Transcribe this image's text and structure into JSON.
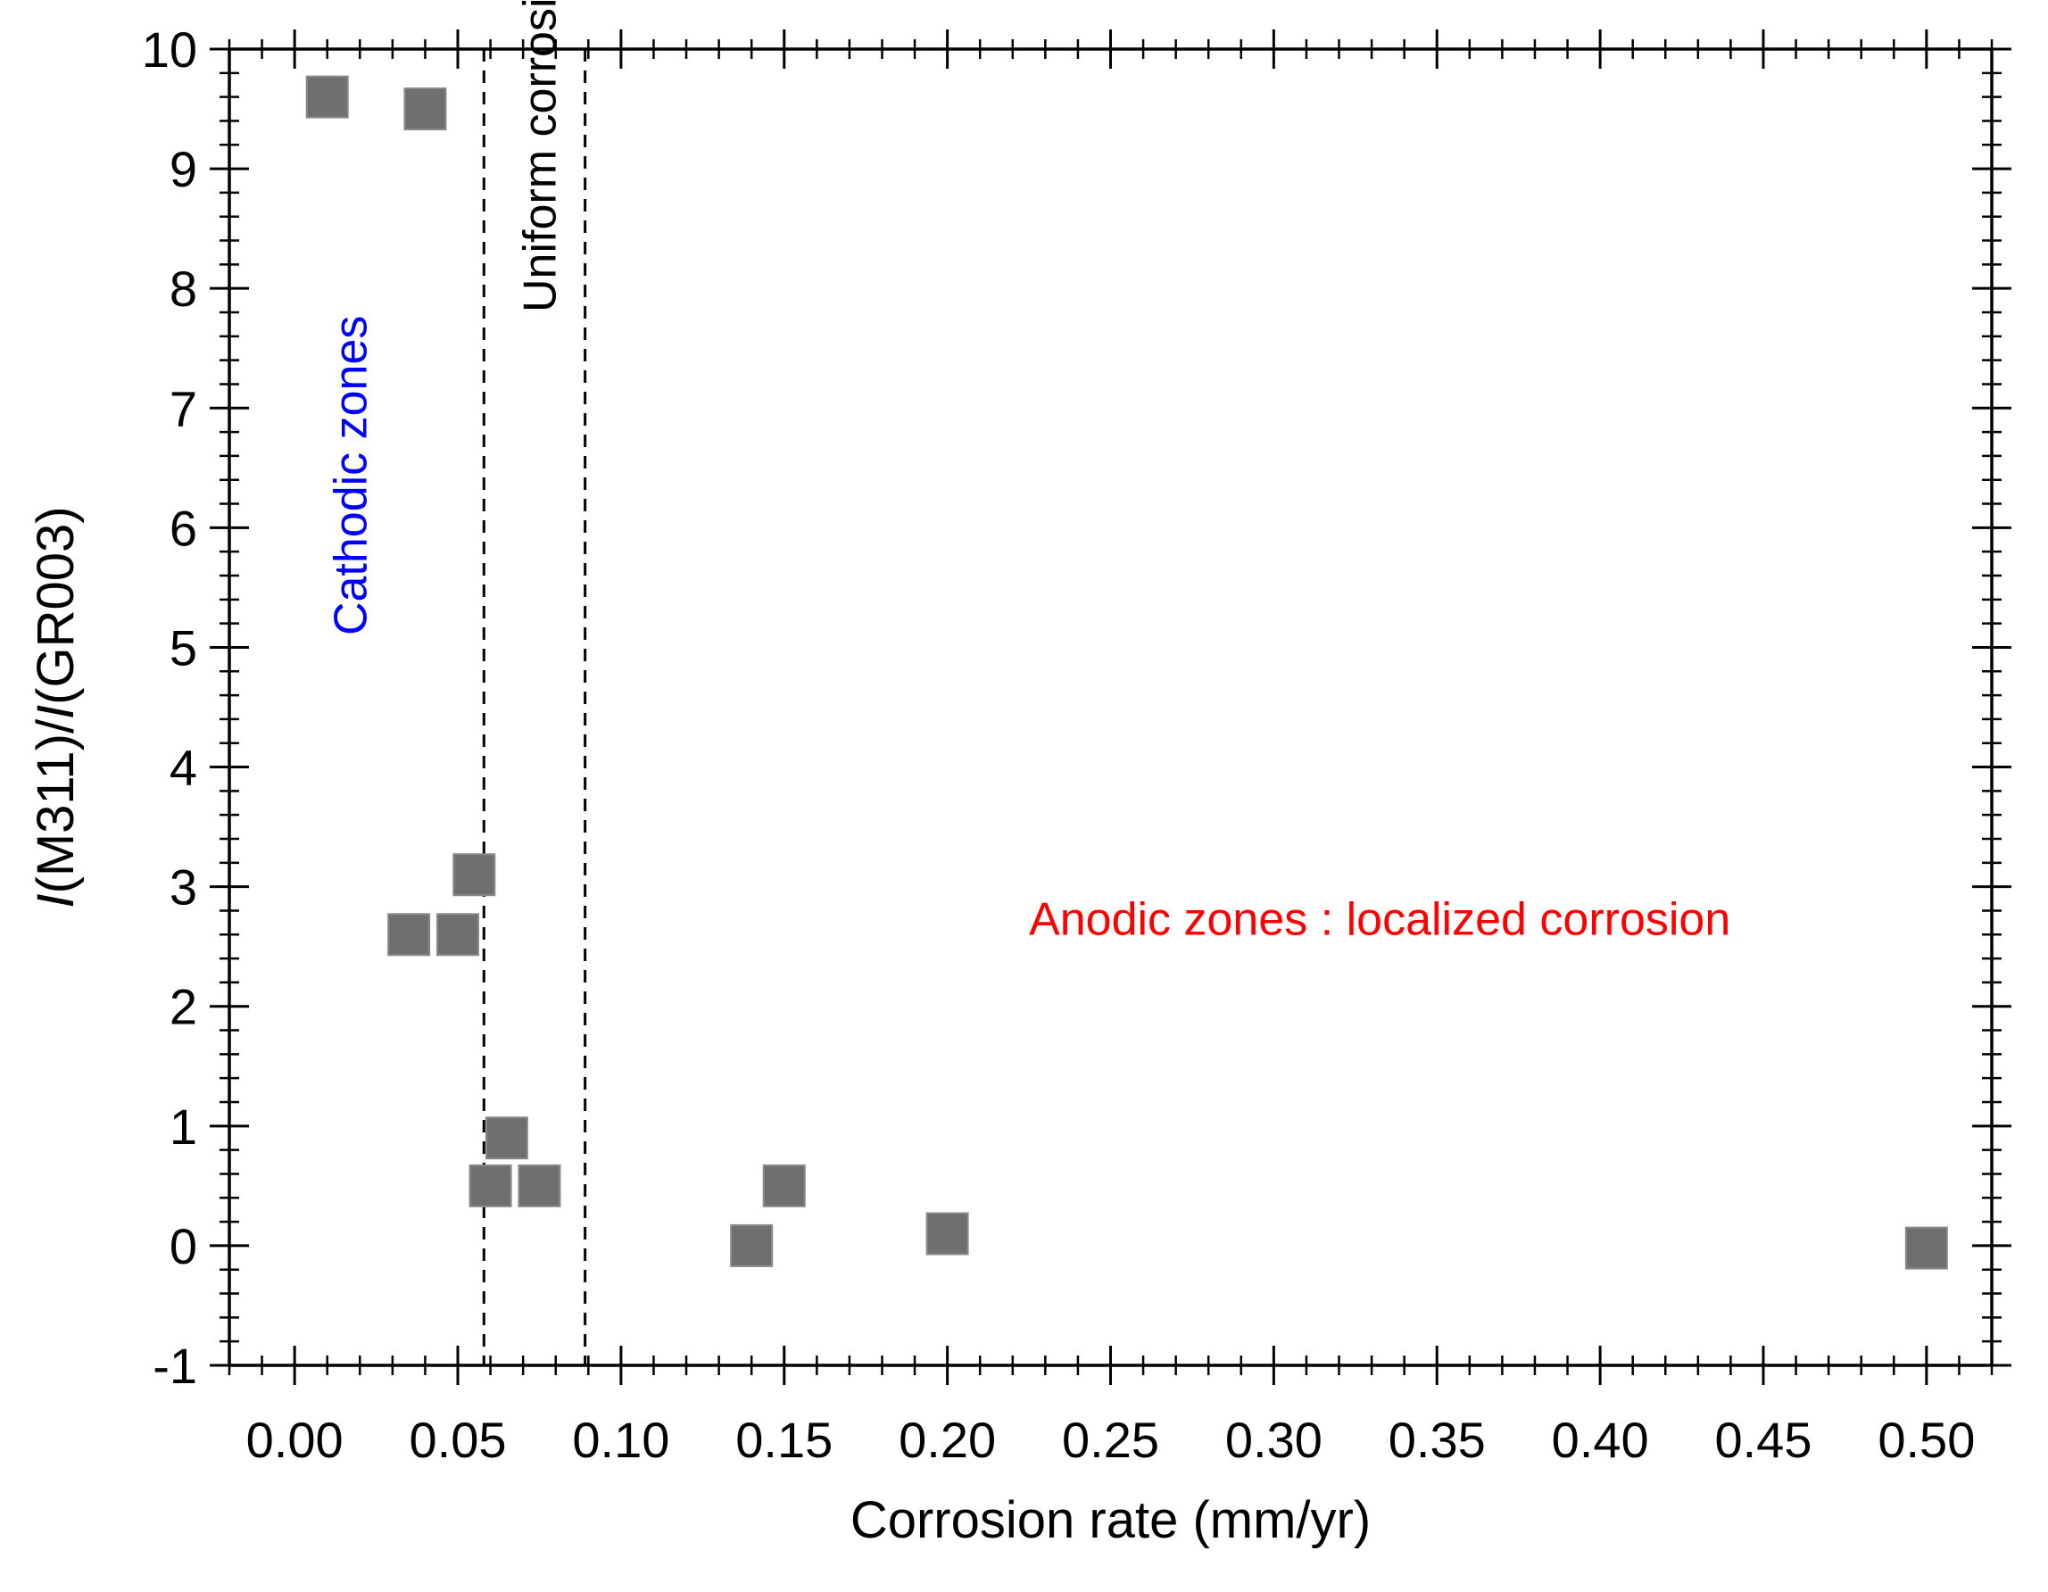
{
  "chart_data": {
    "type": "scatter",
    "xlabel": "Corrosion rate (mm/yr)",
    "ylabel_parts": [
      "I",
      "(M311)/",
      "I",
      "(GR003)"
    ],
    "xlim": [
      -0.02,
      0.52
    ],
    "ylim": [
      -1,
      10
    ],
    "x_ticks": [
      "0.00",
      "0.05",
      "0.10",
      "0.15",
      "0.20",
      "0.25",
      "0.30",
      "0.35",
      "0.40",
      "0.45",
      "0.50"
    ],
    "y_ticks": [
      "-1",
      "0",
      "1",
      "2",
      "3",
      "4",
      "5",
      "6",
      "7",
      "8",
      "9",
      "10"
    ],
    "x_tick_values": [
      0,
      0.05,
      0.1,
      0.15,
      0.2,
      0.25,
      0.3,
      0.35,
      0.4,
      0.45,
      0.5
    ],
    "y_tick_values": [
      -1,
      0,
      1,
      2,
      3,
      4,
      5,
      6,
      7,
      8,
      9,
      10
    ],
    "marker": "square",
    "marker_color": "#6f6f6f",
    "points": [
      {
        "x": 0.01,
        "y": 9.6
      },
      {
        "x": 0.04,
        "y": 9.5
      },
      {
        "x": 0.055,
        "y": 3.1
      },
      {
        "x": 0.035,
        "y": 2.6
      },
      {
        "x": 0.05,
        "y": 2.6
      },
      {
        "x": 0.065,
        "y": 0.9
      },
      {
        "x": 0.06,
        "y": 0.5
      },
      {
        "x": 0.075,
        "y": 0.5
      },
      {
        "x": 0.14,
        "y": 0.0
      },
      {
        "x": 0.15,
        "y": 0.5
      },
      {
        "x": 0.2,
        "y": 0.1
      },
      {
        "x": 0.5,
        "y": -0.02
      }
    ],
    "reference_lines": [
      {
        "x": 0.058,
        "style": "dashed"
      },
      {
        "x": 0.089,
        "style": "dashed"
      }
    ],
    "annotations": [
      {
        "text": "Cathodic zones",
        "x": 0.022,
        "y": 5.1,
        "color": "#0000ff",
        "rotate": true
      },
      {
        "text": "Uniform corrosion",
        "x": 0.08,
        "y": 7.8,
        "color": "#000000",
        "rotate": true
      },
      {
        "text": "Anodic zones : localized corrosion",
        "x": 0.225,
        "y": 2.6,
        "color": "#ff0000",
        "rotate": false
      }
    ],
    "grid": false,
    "legend": "none"
  }
}
